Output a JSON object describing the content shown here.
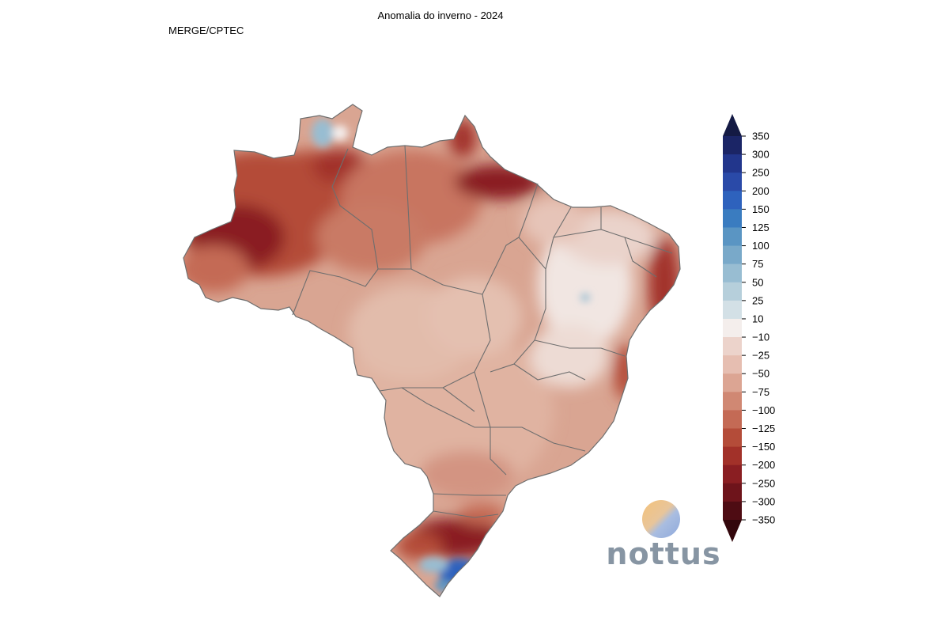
{
  "header": {
    "title": "Anomalia do inverno - 2024",
    "source": "MERGE/CPTEC"
  },
  "map": {
    "region": "Brasil",
    "border_color": "#6e6e6e"
  },
  "colorbar": {
    "labels": [
      "350",
      "300",
      "250",
      "200",
      "150",
      "125",
      "100",
      "75",
      "50",
      "25",
      "10",
      "−10",
      "−25",
      "−50",
      "−75",
      "−100",
      "−125",
      "−150",
      "−200",
      "−250",
      "−300",
      "−350"
    ],
    "bins": [
      "#141a44",
      "#1b2566",
      "#22368c",
      "#2a4aa8",
      "#2e62bd",
      "#3a7cc0",
      "#5a95c3",
      "#79a9c9",
      "#98bdd2",
      "#b6cfdb",
      "#d3e0e6",
      "#f4eeec",
      "#ecd3cb",
      "#e6beb1",
      "#dca593",
      "#d08873",
      "#c46a55",
      "#b44c39",
      "#a23129",
      "#8a1e22",
      "#6e141b",
      "#4e0c13",
      "#33070c"
    ],
    "tip_top_color": "#141a44",
    "tip_bottom_color": "#33070c"
  },
  "brand": {
    "name": "nottus"
  }
}
